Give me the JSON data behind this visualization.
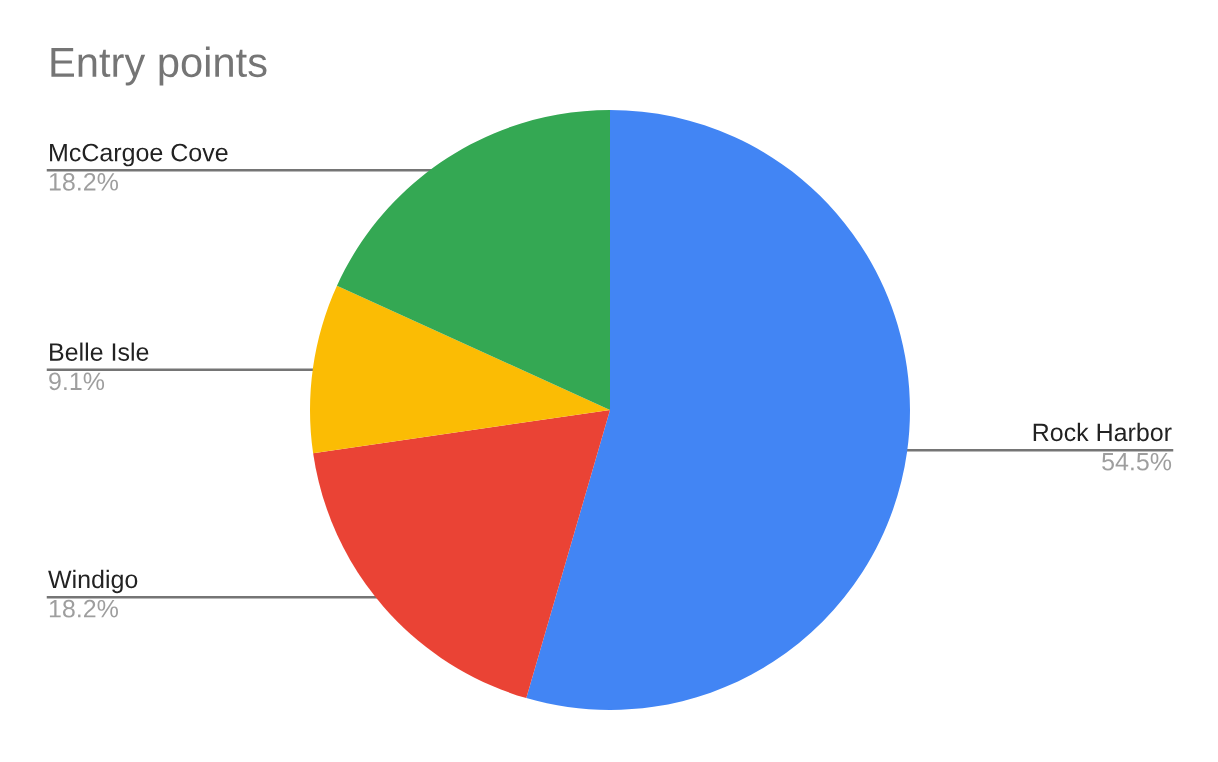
{
  "chart_data": {
    "type": "pie",
    "title": "Entry points",
    "categories": [
      "Rock Harbor",
      "Windigo",
      "Belle Isle",
      "McCargoe Cove"
    ],
    "values": [
      54.5,
      18.2,
      9.1,
      18.2
    ],
    "value_labels": [
      "54.5%",
      "18.2%",
      "9.1%",
      "18.2%"
    ],
    "colors": [
      "#4285f4",
      "#ea4335",
      "#fbbc04",
      "#34a853"
    ],
    "legend": false
  }
}
